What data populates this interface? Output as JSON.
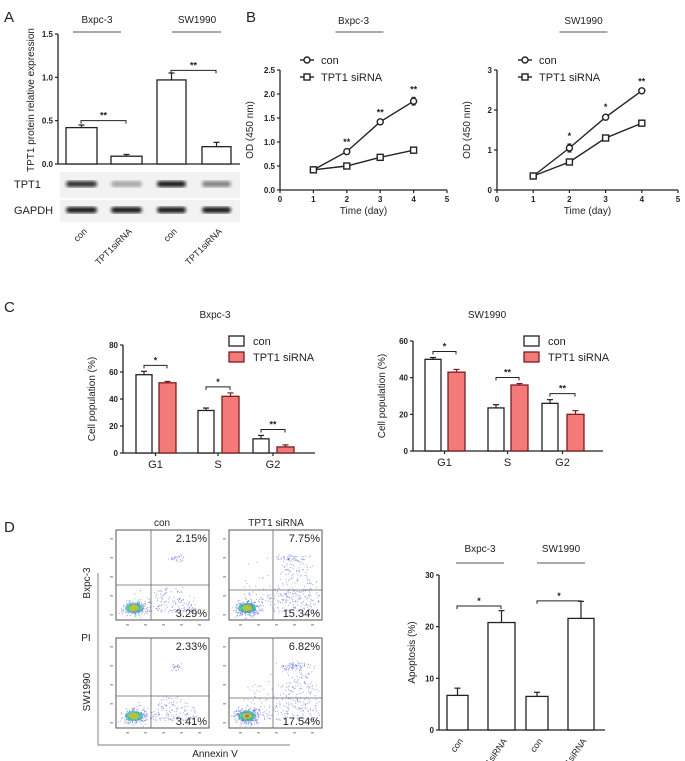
{
  "panels": [
    "A",
    "B",
    "C",
    "D"
  ],
  "chart_data": [
    {
      "id": "A",
      "type": "bar",
      "ylabel": "TPT1 protein relative expression",
      "ylim": [
        0,
        1.5
      ],
      "yticks": [
        "0.0",
        "0.5",
        "1.0",
        "1.5"
      ],
      "groups": [
        "Bxpc-3",
        "SW1990"
      ],
      "categories": [
        "con",
        "TPT1siRNA",
        "con",
        "TPT1siRNA"
      ],
      "values": [
        0.42,
        0.09,
        0.97,
        0.2
      ],
      "errors": [
        0.03,
        0.02,
        0.08,
        0.05
      ],
      "significance": [
        "**",
        "**"
      ],
      "blot_rows": [
        "TPT1",
        "GAPDH"
      ],
      "blot_intensity": {
        "TPT1": [
          0.85,
          0.3,
          0.95,
          0.5
        ],
        "GAPDH": [
          0.95,
          0.95,
          0.95,
          0.95
        ]
      }
    },
    {
      "id": "B-left",
      "type": "line",
      "title": "Bxpc-3",
      "xlabel": "Time (day)",
      "ylabel": "OD (450 nm)",
      "xlim": [
        0,
        5
      ],
      "ylim": [
        0,
        2.5
      ],
      "xticks": [
        "0",
        "1",
        "2",
        "3",
        "4",
        "5"
      ],
      "yticks": [
        "0.0",
        "0.5",
        "1.0",
        "1.5",
        "2.0",
        "2.5"
      ],
      "x": [
        1,
        2,
        3,
        4
      ],
      "series": [
        {
          "name": "con",
          "marker": "circle",
          "values": [
            0.42,
            0.8,
            1.42,
            1.85
          ],
          "errors": [
            0.02,
            0.03,
            0.03,
            0.08
          ]
        },
        {
          "name": "TPT1 siRNA",
          "marker": "square",
          "values": [
            0.42,
            0.5,
            0.68,
            0.83
          ],
          "errors": [
            0.02,
            0.02,
            0.02,
            0.06
          ]
        }
      ],
      "significance": [
        "",
        "**",
        "**",
        "**"
      ]
    },
    {
      "id": "B-right",
      "type": "line",
      "title": "SW1990",
      "xlabel": "Time (day)",
      "ylabel": "OD (450 nm)",
      "xlim": [
        0,
        5
      ],
      "ylim": [
        0,
        3
      ],
      "xticks": [
        "0",
        "1",
        "2",
        "3",
        "4",
        "5"
      ],
      "yticks": [
        "0",
        "1",
        "2",
        "3"
      ],
      "x": [
        1,
        2,
        3,
        4
      ],
      "series": [
        {
          "name": "con",
          "marker": "circle",
          "values": [
            0.35,
            1.05,
            1.82,
            2.48
          ],
          "errors": [
            0.02,
            0.1,
            0.06,
            0.03
          ]
        },
        {
          "name": "TPT1 siRNA",
          "marker": "square",
          "values": [
            0.35,
            0.7,
            1.3,
            1.67
          ],
          "errors": [
            0.02,
            0.03,
            0.03,
            0.05
          ]
        }
      ],
      "significance": [
        "",
        "*",
        "*",
        "**"
      ]
    },
    {
      "id": "C-left",
      "type": "bar",
      "title": "Bxpc-3",
      "ylabel": "Cell population (%)",
      "ylim": [
        0,
        80
      ],
      "yticks": [
        "0",
        "20",
        "40",
        "60",
        "80"
      ],
      "categories": [
        "G1",
        "S",
        "G2"
      ],
      "series": [
        {
          "name": "con",
          "color": "#ffffff",
          "values": [
            58,
            31.5,
            10.5
          ],
          "errors": [
            2.5,
            1.8,
            2.5
          ]
        },
        {
          "name": "TPT1 siRNA",
          "color": "#f47a7a",
          "values": [
            52,
            42,
            4.5
          ],
          "errors": [
            1,
            2.5,
            1.5
          ]
        }
      ],
      "significance": [
        "*",
        "*",
        "**"
      ]
    },
    {
      "id": "C-right",
      "type": "bar",
      "title": "SW1990",
      "ylabel": "Cell population (%)",
      "ylim": [
        0,
        60
      ],
      "yticks": [
        "0",
        "20",
        "40",
        "60"
      ],
      "categories": [
        "G1",
        "S",
        "G2"
      ],
      "series": [
        {
          "name": "con",
          "color": "#ffffff",
          "values": [
            50,
            23.5,
            26
          ],
          "errors": [
            1,
            1.8,
            2
          ]
        },
        {
          "name": "TPT1 siRNA",
          "color": "#f47a7a",
          "values": [
            43,
            36,
            20
          ],
          "errors": [
            1.5,
            0.8,
            2
          ]
        }
      ],
      "significance": [
        "*",
        "**",
        "**"
      ]
    },
    {
      "id": "D-flow",
      "type": "scatter",
      "column_labels": [
        "con",
        "TPT1 siRNA"
      ],
      "row_labels": [
        "Bxpc-3",
        "SW1990"
      ],
      "ylabel": "PI",
      "xlabel": "Annexin V",
      "quadrant_upper_right": [
        [
          "2.15%",
          "7.75%"
        ],
        [
          "2.33%",
          "6.82%"
        ]
      ],
      "quadrant_lower_right": [
        [
          "3.29%",
          "15.34%"
        ],
        [
          "3.41%",
          "17.54%"
        ]
      ]
    },
    {
      "id": "D-bar",
      "type": "bar",
      "ylabel": "Apoptosis (%)",
      "ylim": [
        0,
        30
      ],
      "yticks": [
        "0",
        "10",
        "20",
        "30"
      ],
      "groups": [
        "Bxpc-3",
        "SW1990"
      ],
      "categories": [
        "con",
        "TPT1siRNA",
        "con",
        "TPT1siRNA"
      ],
      "values": [
        6.7,
        20.8,
        6.5,
        21.6
      ],
      "errors": [
        1.4,
        2.3,
        0.8,
        3.3
      ],
      "significance": [
        "*",
        "*"
      ]
    }
  ]
}
